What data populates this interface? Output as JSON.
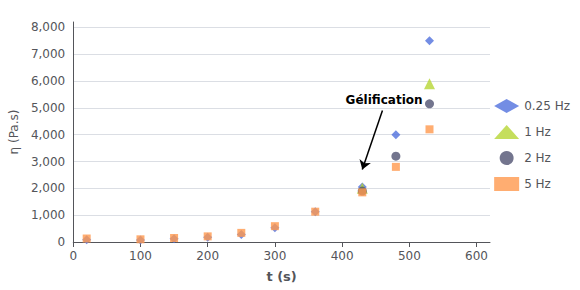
{
  "chart_data": {
    "type": "scatter",
    "xlabel": "t (s)",
    "ylabel": "η (Pa.s)",
    "xlim": [
      0,
      620
    ],
    "ylim": [
      0,
      8200
    ],
    "xticks": [
      0,
      100,
      200,
      300,
      400,
      500,
      600
    ],
    "yticks": [
      0,
      1000,
      2000,
      3000,
      4000,
      5000,
      6000,
      7000,
      8000
    ],
    "grid": true,
    "legend": "right",
    "series": [
      {
        "name": "0.25 Hz",
        "marker": "diamond",
        "x": [
          20,
          100,
          150,
          200,
          250,
          300,
          360,
          430,
          480,
          530
        ],
        "values": [
          80,
          70,
          120,
          180,
          280,
          530,
          1130,
          2050,
          4000,
          7500
        ]
      },
      {
        "name": "1 Hz",
        "marker": "triangle",
        "x": [
          430,
          530
        ],
        "values": [
          2000,
          5900
        ]
      },
      {
        "name": "2 Hz",
        "marker": "circle",
        "x": [
          430,
          480,
          530
        ],
        "values": [
          1900,
          3200,
          5150
        ]
      },
      {
        "name": "5 Hz",
        "marker": "square",
        "x": [
          20,
          100,
          150,
          200,
          250,
          300,
          360,
          430,
          480,
          530
        ],
        "values": [
          130,
          100,
          150,
          210,
          340,
          590,
          1130,
          1850,
          2800,
          4200
        ]
      }
    ],
    "annotations": [
      {
        "text": "Gélification",
        "x": 460,
        "y": 4900,
        "arrow_x": 430,
        "arrow_y": 2700
      }
    ]
  }
}
